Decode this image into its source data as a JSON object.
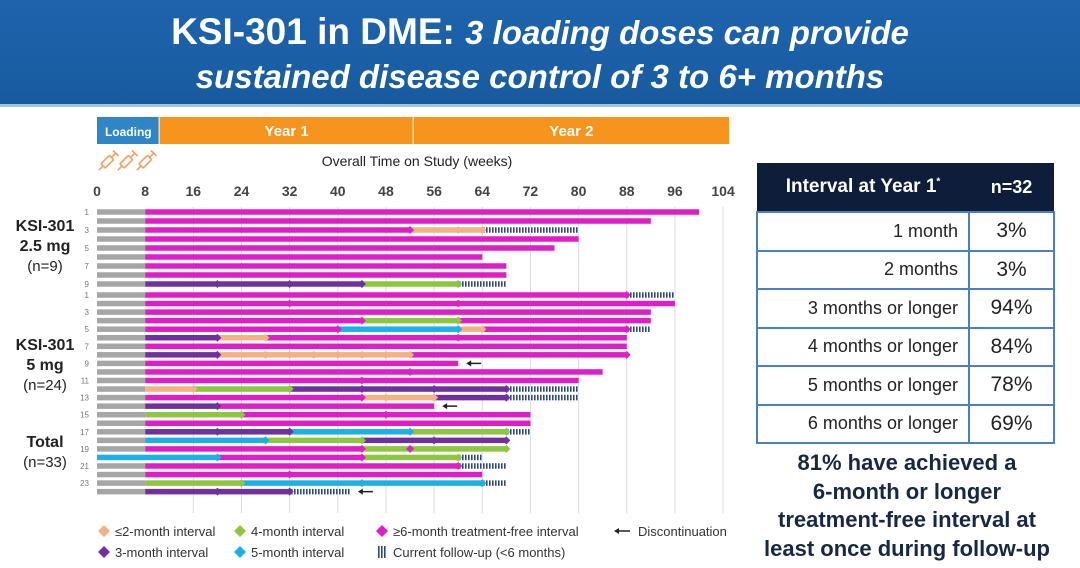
{
  "header": {
    "title_bold": "KSI-301 in DME:",
    "title_italic_1": "3 loading doses can provide",
    "title_line2": "sustained disease control of 3 to 6+ months"
  },
  "timeline": {
    "phases": [
      {
        "label": "Loading",
        "from": 0,
        "to": 10.4,
        "color": "#2f86c6"
      },
      {
        "label": "Year 1",
        "from": 10.4,
        "to": 52.6,
        "color": "#f7941d"
      },
      {
        "label": "Year 2",
        "from": 52.6,
        "to": 105.0,
        "color": "#f7941d"
      }
    ],
    "syringe_icons": 3
  },
  "chart_data": {
    "type": "swimmer",
    "title": "Overall Time on Study (weeks)",
    "xlabel": "Overall Time on Study (weeks)",
    "x_ticks": [
      0,
      8,
      16,
      24,
      32,
      40,
      48,
      56,
      64,
      72,
      80,
      88,
      96,
      104
    ],
    "xlim": [
      0,
      104
    ],
    "grid": true,
    "colors": {
      "loading": "#a6a6a6",
      "le2": "#f4b183",
      "m3": "#7030a0",
      "m4": "#8dc63f",
      "m5": "#1cb0e8",
      "ge6": "#e01ec8",
      "followup": "#2e4a7d",
      "arrow": "#222222"
    },
    "groups": [
      {
        "label_line1": "KSI-301",
        "label_line2": "2.5 mg",
        "label_line3": "(n=9)",
        "rows": [
          0,
          8
        ]
      },
      {
        "label_line1": "KSI-301",
        "label_line2": "5 mg",
        "label_line3": "(n=24)",
        "rows": [
          9,
          32
        ]
      },
      {
        "label_line1": "Total",
        "label_line2": "(n=33)",
        "rows": []
      }
    ],
    "rows": [
      {
        "group": 0,
        "label": "1",
        "segs": [
          [
            "loading",
            0,
            8
          ],
          [
            "ge6",
            8,
            100
          ]
        ],
        "marks": []
      },
      {
        "group": 0,
        "label": "",
        "segs": [
          [
            "loading",
            0,
            8
          ],
          [
            "ge6",
            8,
            92
          ]
        ],
        "marks": []
      },
      {
        "group": 0,
        "label": "3",
        "segs": [
          [
            "loading",
            0,
            8
          ],
          [
            "ge6",
            8,
            52
          ],
          [
            "le2",
            52,
            64
          ],
          [
            "followup",
            64,
            80
          ]
        ],
        "marks": [
          [
            "ge6",
            52
          ],
          [
            "le2",
            60
          ],
          [
            "le2",
            64
          ]
        ]
      },
      {
        "group": 0,
        "label": "",
        "segs": [
          [
            "loading",
            0,
            8
          ],
          [
            "ge6",
            8,
            80
          ]
        ],
        "marks": []
      },
      {
        "group": 0,
        "label": "5",
        "segs": [
          [
            "loading",
            0,
            8
          ],
          [
            "ge6",
            8,
            76
          ]
        ],
        "marks": []
      },
      {
        "group": 0,
        "label": "",
        "segs": [
          [
            "loading",
            0,
            8
          ],
          [
            "ge6",
            8,
            64
          ]
        ],
        "marks": []
      },
      {
        "group": 0,
        "label": "7",
        "segs": [
          [
            "loading",
            0,
            8
          ],
          [
            "ge6",
            8,
            68
          ]
        ],
        "marks": []
      },
      {
        "group": 0,
        "label": "",
        "segs": [
          [
            "loading",
            0,
            8
          ],
          [
            "ge6",
            8,
            68
          ]
        ],
        "marks": []
      },
      {
        "group": 0,
        "label": "9",
        "segs": [
          [
            "loading",
            0,
            8
          ],
          [
            "m3",
            8,
            44
          ],
          [
            "m4",
            44,
            60
          ],
          [
            "followup",
            60,
            68
          ]
        ],
        "marks": [
          [
            "m3",
            20
          ],
          [
            "m3",
            32
          ],
          [
            "m3",
            44
          ],
          [
            "m4",
            60
          ]
        ]
      },
      {
        "group": 1,
        "label": "1",
        "segs": [
          [
            "loading",
            0,
            8
          ],
          [
            "ge6",
            8,
            88
          ],
          [
            "followup",
            88,
            96
          ]
        ],
        "marks": [
          [
            "ge6",
            88
          ]
        ]
      },
      {
        "group": 1,
        "label": "",
        "segs": [
          [
            "loading",
            0,
            8
          ],
          [
            "ge6",
            8,
            96
          ]
        ],
        "marks": [
          [
            "ge6",
            32
          ],
          [
            "ge6",
            60
          ]
        ]
      },
      {
        "group": 1,
        "label": "3",
        "segs": [
          [
            "loading",
            0,
            8
          ],
          [
            "ge6",
            8,
            92
          ]
        ],
        "marks": []
      },
      {
        "group": 1,
        "label": "",
        "segs": [
          [
            "loading",
            0,
            8
          ],
          [
            "ge6",
            8,
            44
          ],
          [
            "m4",
            44,
            60
          ],
          [
            "ge6",
            60,
            92
          ]
        ],
        "marks": [
          [
            "ge6",
            44
          ],
          [
            "m4",
            60
          ]
        ]
      },
      {
        "group": 1,
        "label": "5",
        "segs": [
          [
            "loading",
            0,
            8
          ],
          [
            "ge6",
            8,
            40
          ],
          [
            "m5",
            40,
            60
          ],
          [
            "le2",
            60,
            64
          ],
          [
            "ge6",
            64,
            88
          ],
          [
            "followup",
            88,
            92
          ]
        ],
        "marks": [
          [
            "ge6",
            40
          ],
          [
            "m5",
            60
          ],
          [
            "le2",
            64
          ],
          [
            "ge6",
            88
          ]
        ]
      },
      {
        "group": 1,
        "label": "",
        "segs": [
          [
            "loading",
            0,
            8
          ],
          [
            "m3",
            8,
            20
          ],
          [
            "le2",
            20,
            28
          ],
          [
            "ge6",
            28,
            88
          ]
        ],
        "marks": [
          [
            "m3",
            20
          ],
          [
            "le2",
            28
          ],
          [
            "ge6",
            60
          ]
        ]
      },
      {
        "group": 1,
        "label": "7",
        "segs": [
          [
            "loading",
            0,
            8
          ],
          [
            "ge6",
            8,
            88
          ]
        ],
        "marks": []
      },
      {
        "group": 1,
        "label": "",
        "segs": [
          [
            "loading",
            0,
            8
          ],
          [
            "m3",
            8,
            20
          ],
          [
            "le2",
            20,
            52
          ],
          [
            "ge6",
            52,
            88
          ]
        ],
        "marks": [
          [
            "m3",
            20
          ],
          [
            "le2",
            28
          ],
          [
            "le2",
            32
          ],
          [
            "le2",
            36
          ],
          [
            "le2",
            40
          ],
          [
            "le2",
            44
          ],
          [
            "le2",
            48
          ],
          [
            "le2",
            52
          ],
          [
            "ge6",
            88
          ]
        ]
      },
      {
        "group": 1,
        "label": "9",
        "segs": [
          [
            "loading",
            0,
            8
          ],
          [
            "ge6",
            8,
            60
          ]
        ],
        "marks": [],
        "disc": 60
      },
      {
        "group": 1,
        "label": "",
        "segs": [
          [
            "loading",
            0,
            8
          ],
          [
            "ge6",
            8,
            84
          ]
        ],
        "marks": [
          [
            "ge6",
            52
          ]
        ]
      },
      {
        "group": 1,
        "label": "11",
        "segs": [
          [
            "loading",
            0,
            8
          ],
          [
            "ge6",
            8,
            80
          ]
        ],
        "marks": [
          [
            "ge6",
            44
          ]
        ]
      },
      {
        "group": 1,
        "label": "",
        "segs": [
          [
            "loading",
            0,
            8
          ],
          [
            "le2",
            8,
            16
          ],
          [
            "m4",
            16,
            32
          ],
          [
            "m3",
            32,
            68
          ],
          [
            "followup",
            68,
            80
          ]
        ],
        "marks": [
          [
            "le2",
            16
          ],
          [
            "m4",
            32
          ],
          [
            "m3",
            44
          ],
          [
            "m3",
            56
          ],
          [
            "m3",
            68
          ]
        ]
      },
      {
        "group": 1,
        "label": "13",
        "segs": [
          [
            "loading",
            0,
            8
          ],
          [
            "ge6",
            8,
            44
          ],
          [
            "le2",
            44,
            56
          ],
          [
            "m3",
            56,
            68
          ],
          [
            "followup",
            68,
            80
          ]
        ],
        "marks": [
          [
            "ge6",
            44
          ],
          [
            "le2",
            48
          ],
          [
            "le2",
            56
          ],
          [
            "m3",
            68
          ]
        ]
      },
      {
        "group": 1,
        "label": "",
        "segs": [
          [
            "loading",
            0,
            8
          ],
          [
            "m3",
            8,
            20
          ],
          [
            "ge6",
            20,
            56
          ]
        ],
        "marks": [
          [
            "m3",
            20
          ]
        ],
        "disc": 56
      },
      {
        "group": 1,
        "label": "15",
        "segs": [
          [
            "loading",
            0,
            8
          ],
          [
            "m4",
            8,
            24
          ],
          [
            "ge6",
            24,
            72
          ]
        ],
        "marks": [
          [
            "m4",
            24
          ],
          [
            "ge6",
            48
          ]
        ]
      },
      {
        "group": 1,
        "label": "",
        "segs": [
          [
            "loading",
            0,
            8
          ],
          [
            "ge6",
            8,
            72
          ]
        ],
        "marks": []
      },
      {
        "group": 1,
        "label": "17",
        "segs": [
          [
            "loading",
            0,
            8
          ],
          [
            "m3",
            8,
            32
          ],
          [
            "m5",
            32,
            52
          ],
          [
            "m4",
            52,
            68
          ],
          [
            "followup",
            68,
            72
          ]
        ],
        "marks": [
          [
            "m3",
            20
          ],
          [
            "m3",
            32
          ],
          [
            "m5",
            52
          ],
          [
            "m4",
            68
          ]
        ]
      },
      {
        "group": 1,
        "label": "",
        "segs": [
          [
            "loading",
            0,
            8
          ],
          [
            "m5",
            8,
            28
          ],
          [
            "m4",
            28,
            44
          ],
          [
            "m3",
            44,
            68
          ]
        ],
        "marks": [
          [
            "m5",
            28
          ],
          [
            "m4",
            44
          ],
          [
            "m3",
            56
          ],
          [
            "m3",
            68
          ]
        ]
      },
      {
        "group": 1,
        "label": "19",
        "segs": [
          [
            "loading",
            0,
            8
          ],
          [
            "ge6",
            8,
            44
          ],
          [
            "m4",
            44,
            68
          ]
        ],
        "marks": [
          [
            "ge6",
            44
          ],
          [
            "ge6",
            52
          ],
          [
            "m4",
            68
          ]
        ]
      },
      {
        "group": 1,
        "label": "",
        "segs": [
          [
            "m5",
            0,
            20
          ],
          [
            "ge6",
            20,
            44
          ],
          [
            "m4",
            44,
            60
          ],
          [
            "followup",
            60,
            64
          ]
        ],
        "marks": [
          [
            "m5",
            20
          ],
          [
            "ge6",
            44
          ],
          [
            "m4",
            60
          ]
        ]
      },
      {
        "group": 1,
        "label": "21",
        "segs": [
          [
            "loading",
            0,
            8
          ],
          [
            "ge6",
            8,
            60
          ],
          [
            "followup",
            60,
            68
          ]
        ],
        "marks": [
          [
            "ge6",
            60
          ]
        ]
      },
      {
        "group": 1,
        "label": "",
        "segs": [
          [
            "loading",
            0,
            8
          ],
          [
            "ge6",
            8,
            64
          ]
        ],
        "marks": [
          [
            "ge6",
            32
          ]
        ]
      },
      {
        "group": 1,
        "label": "23",
        "segs": [
          [
            "loading",
            0,
            8
          ],
          [
            "m4",
            8,
            24
          ],
          [
            "m5",
            24,
            64
          ],
          [
            "followup",
            64,
            68
          ]
        ],
        "marks": [
          [
            "m4",
            24
          ],
          [
            "m5",
            44
          ],
          [
            "m5",
            64
          ]
        ]
      },
      {
        "group": 1,
        "label": "",
        "segs": [
          [
            "loading",
            0,
            8
          ],
          [
            "m3",
            8,
            32
          ],
          [
            "followup",
            32,
            42
          ]
        ],
        "marks": [
          [
            "m3",
            20
          ],
          [
            "m3",
            32
          ]
        ],
        "disc": 42
      }
    ],
    "legend": [
      {
        "key": "le2",
        "label": "≤2-month interval",
        "shape": "diamond"
      },
      {
        "key": "m4",
        "label": "4-month interval",
        "shape": "diamond"
      },
      {
        "key": "ge6",
        "label": "≥6-month treatment-free interval",
        "shape": "diamond"
      },
      {
        "key": "arrow",
        "label": "Discontinuation",
        "shape": "arrow"
      },
      {
        "key": "m3",
        "label": "3-month interval",
        "shape": "diamond"
      },
      {
        "key": "m5",
        "label": "5-month interval",
        "shape": "diamond"
      },
      {
        "key": "followup",
        "label": "Current follow-up (<6 months)",
        "shape": "hatch"
      }
    ]
  },
  "table": {
    "header_label": "Interval at Year 1",
    "header_footnote": "*",
    "header_n": "n=32",
    "rows": [
      {
        "interval": "1 month",
        "pct": "3%"
      },
      {
        "interval": "2 months",
        "pct": "3%"
      },
      {
        "interval": "3 months or longer",
        "pct": "94%"
      },
      {
        "interval": "4 months or longer",
        "pct": "84%"
      },
      {
        "interval": "5 months or longer",
        "pct": "78%"
      },
      {
        "interval": "6 months or longer",
        "pct": "69%"
      }
    ]
  },
  "callout": {
    "line1": "81% have achieved a",
    "line2": "6-month or longer",
    "line3": "treatment-free interval at",
    "line4": "least once during follow-up"
  }
}
